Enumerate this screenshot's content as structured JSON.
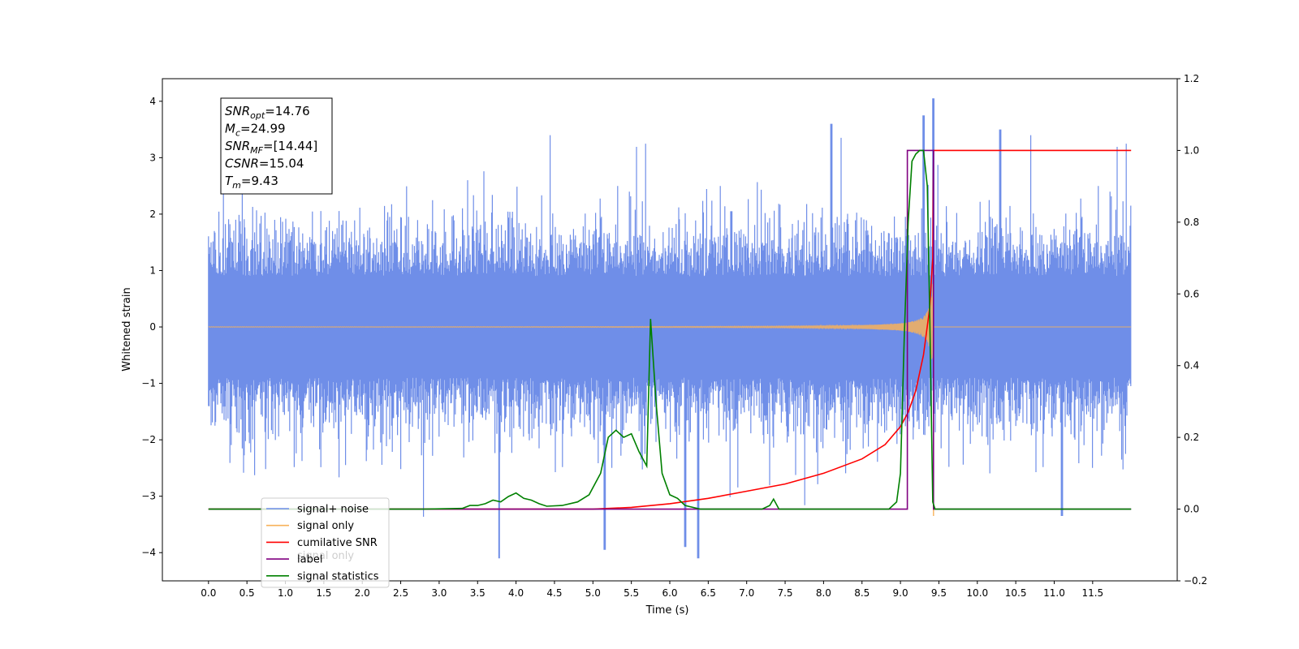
{
  "chart_data": {
    "type": "line",
    "xlabel": "Time (s)",
    "ylabel": "Whitened strain",
    "xlim": [
      -0.6,
      12.6
    ],
    "ylim": [
      -4.5,
      4.4
    ],
    "y2lim": [
      -0.2,
      1.2
    ],
    "xticks": [
      0.0,
      0.5,
      1.0,
      1.5,
      2.0,
      2.5,
      3.0,
      3.5,
      4.0,
      4.5,
      5.0,
      5.5,
      6.0,
      6.5,
      7.0,
      7.5,
      8.0,
      8.5,
      9.0,
      9.5,
      10.0,
      10.5,
      11.0,
      11.5
    ],
    "xtick_labels": [
      "0.0",
      "0.5",
      "1.0",
      "1.5",
      "2.0",
      "2.5",
      "3.0",
      "3.5",
      "4.0",
      "4.5",
      "5.0",
      "5.5",
      "6.0",
      "6.5",
      "7.0",
      "7.5",
      "8.0",
      "8.5",
      "9.0",
      "9.5",
      "10.0",
      "10.5",
      "11.0",
      "11.5"
    ],
    "yticks": [
      4,
      3,
      2,
      1,
      0,
      -1,
      -2,
      -3,
      -4
    ],
    "ytick_labels": [
      "4",
      "3",
      "2",
      "1",
      "0",
      "−1",
      "−2",
      "−3",
      "−4"
    ],
    "y2ticks": [
      1.2,
      1.0,
      0.8,
      0.6,
      0.4,
      0.2,
      0.0,
      -0.2
    ],
    "y2tick_labels": [
      "1.2",
      "1.0",
      "0.8",
      "0.6",
      "0.4",
      "0.2",
      "0.0",
      "−0.2"
    ],
    "grid": false,
    "legend_position": "lower-left",
    "series": [
      {
        "name": "signal+ noise",
        "color": "#6f8ee8",
        "axis": "left",
        "x_range": [
          0.0,
          12.0
        ],
        "noise_amplitude": 2.3,
        "peak_min": -4.1,
        "peak_max": 4.05
      },
      {
        "name": "signal only",
        "color": "#f7b15a",
        "axis": "left",
        "x_range": [
          0.0,
          12.0
        ],
        "merger_time": 9.43,
        "peak_amplitude": 1.3
      },
      {
        "name": "cumilative SNR",
        "color": "#ff0000",
        "axis": "right",
        "x": [
          0.0,
          5.0,
          5.5,
          6.0,
          6.5,
          7.0,
          7.5,
          8.0,
          8.5,
          8.8,
          9.0,
          9.1,
          9.2,
          9.3,
          9.38,
          9.42,
          9.43,
          12.0
        ],
        "y": [
          0.0,
          0.0,
          0.005,
          0.015,
          0.03,
          0.05,
          0.07,
          0.1,
          0.14,
          0.18,
          0.23,
          0.27,
          0.33,
          0.43,
          0.56,
          0.7,
          1.0,
          1.0
        ]
      },
      {
        "name": "label",
        "color": "#800080",
        "axis": "right",
        "x": [
          0.0,
          9.09,
          9.09,
          9.43,
          9.43,
          12.0
        ],
        "y": [
          0.0,
          0.0,
          1.0,
          1.0,
          0.0,
          0.0
        ]
      },
      {
        "name": "signal statistics",
        "color": "#008000",
        "axis": "right",
        "x": [
          0.0,
          2.8,
          3.3,
          3.4,
          3.5,
          3.6,
          3.7,
          3.8,
          3.9,
          4.0,
          4.1,
          4.2,
          4.3,
          4.4,
          4.6,
          4.8,
          4.95,
          5.1,
          5.2,
          5.3,
          5.4,
          5.5,
          5.6,
          5.7,
          5.75,
          5.82,
          5.9,
          6.0,
          6.1,
          6.2,
          6.3,
          6.4,
          7.2,
          7.3,
          7.35,
          7.42,
          8.85,
          8.95,
          9.0,
          9.05,
          9.1,
          9.15,
          9.2,
          9.25,
          9.3,
          9.35,
          9.38,
          9.42,
          9.45,
          12.0
        ],
        "y": [
          0.0,
          0.0,
          0.002,
          0.01,
          0.01,
          0.015,
          0.025,
          0.02,
          0.035,
          0.045,
          0.03,
          0.025,
          0.015,
          0.008,
          0.01,
          0.02,
          0.04,
          0.1,
          0.2,
          0.22,
          0.2,
          0.21,
          0.16,
          0.12,
          0.53,
          0.3,
          0.1,
          0.04,
          0.03,
          0.01,
          0.005,
          0.0,
          0.0,
          0.01,
          0.028,
          0.0,
          0.0,
          0.02,
          0.1,
          0.48,
          0.8,
          0.97,
          0.99,
          1.0,
          1.0,
          0.9,
          0.55,
          0.02,
          0.0,
          0.0
        ]
      }
    ],
    "info_box": [
      {
        "base": "SNR",
        "sub": "opt",
        "rest": "=14.76"
      },
      {
        "base": "M",
        "sub": "c",
        "rest": "=24.99"
      },
      {
        "base": "SNR",
        "sub": "MF",
        "rest": "=[14.44]"
      },
      {
        "base": "CSNR",
        "sub": "",
        "rest": "=15.04"
      },
      {
        "base": "T",
        "sub": "m",
        "rest": "=9.43"
      }
    ],
    "legend_overlap_text": "signal only"
  }
}
